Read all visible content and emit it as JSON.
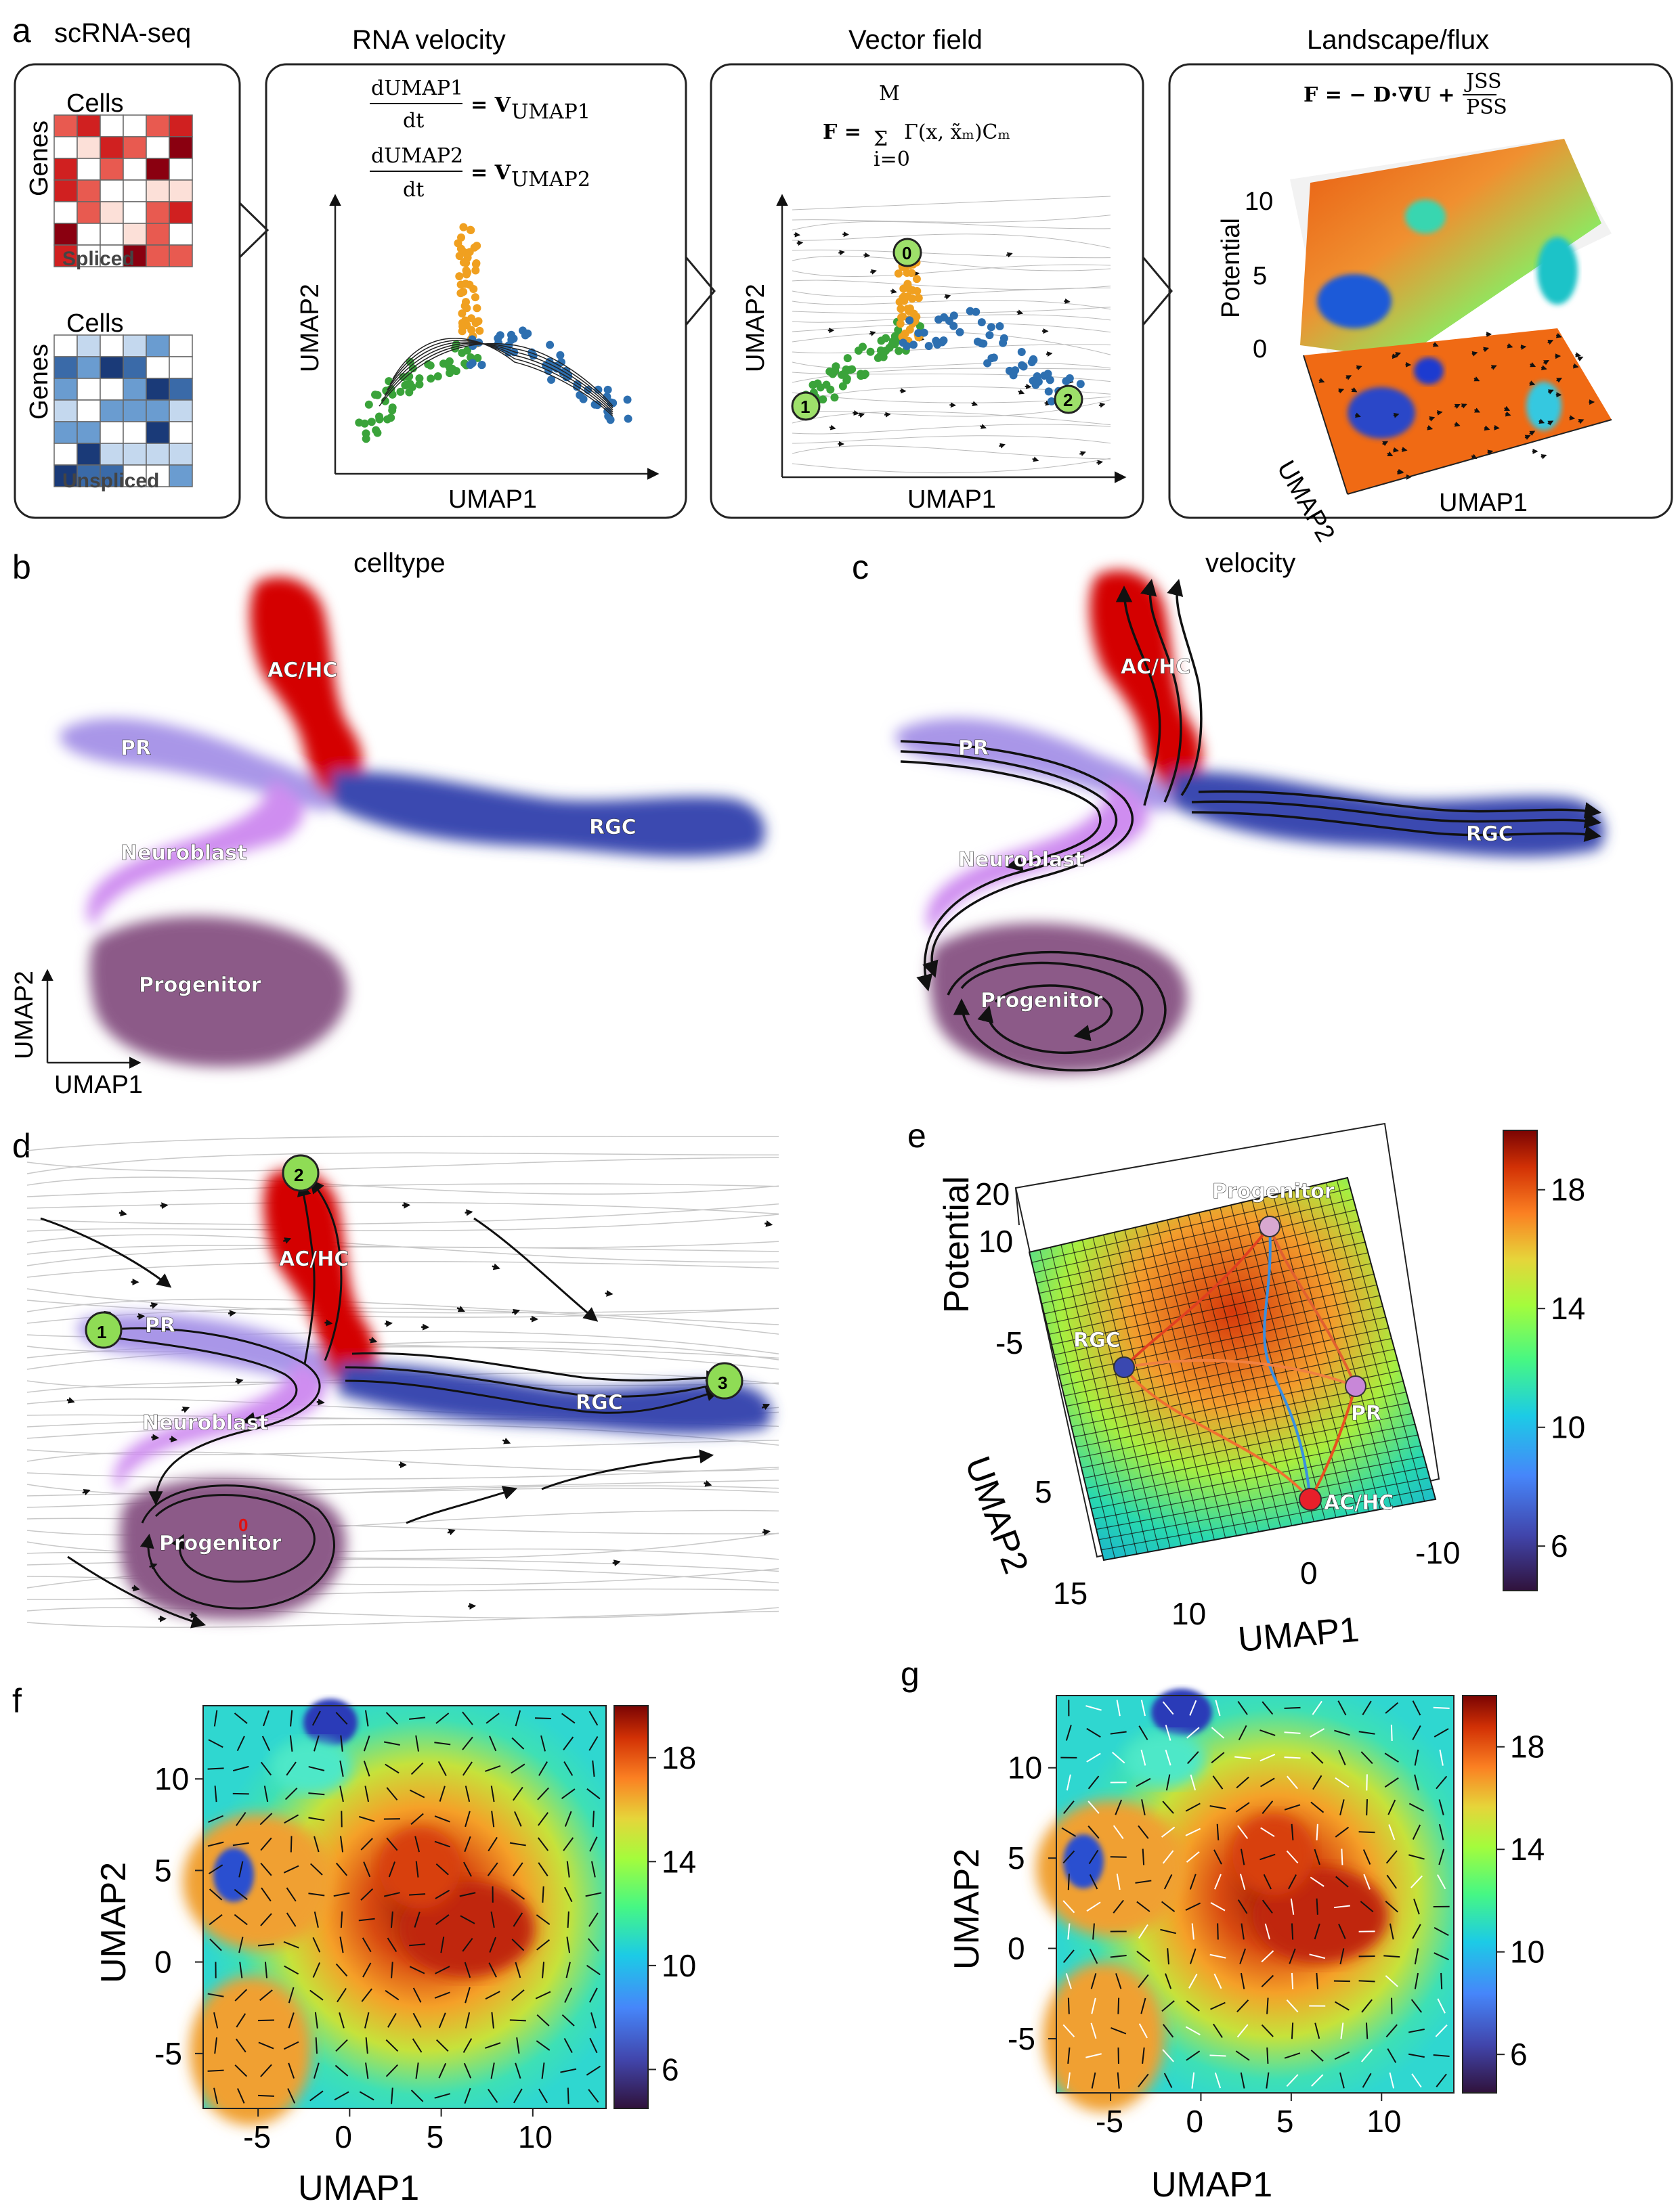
{
  "panels": {
    "a": {
      "label": "a",
      "titles": {
        "scrna": "scRNA-seq",
        "velocity": "RNA velocity",
        "vector": "Vector field",
        "landscape": "Landscape/flux"
      },
      "matrix_top": {
        "cols_label": "Cells",
        "rows_label": "Genes",
        "tag": "Spliced"
      },
      "matrix_bottom": {
        "cols_label": "Cells",
        "rows_label": "Genes",
        "tag": "Unspliced"
      },
      "velocity_eq1_lhs": "dUMAP1",
      "velocity_eq1_den": "dt",
      "velocity_eq1_rhs": "= V",
      "velocity_eq1_sub": "UMAP1",
      "velocity_eq2_lhs": "dUMAP2",
      "velocity_eq2_den": "dt",
      "velocity_eq2_rhs": "= V",
      "velocity_eq2_sub": "UMAP2",
      "vector_eq": "F = Σ Γ(x, x̃m)Cm",
      "vector_eq_top": "M",
      "vector_eq_bottom": "i=0",
      "landscape_eq": "F = − D·∇U + ",
      "landscape_frac_num": "JSS",
      "landscape_frac_den": "PSS",
      "xlabel": "UMAP1",
      "ylabel": "UMAP2",
      "fixed_points": [
        "0",
        "1",
        "2"
      ],
      "potential_label": "Potential",
      "potential_ticks": [
        "10",
        "5",
        "0"
      ]
    },
    "b": {
      "label": "b",
      "title": "celltype",
      "xlabel": "UMAP1",
      "ylabel": "UMAP2",
      "cells": [
        "AC/HC",
        "PR",
        "Neuroblast",
        "RGC",
        "Progenitor"
      ]
    },
    "c": {
      "label": "c",
      "title": "velocity",
      "cells": [
        "AC/HC",
        "PR",
        "Neuroblast",
        "RGC",
        "Progenitor"
      ]
    },
    "d": {
      "label": "d",
      "cells": [
        "AC/HC",
        "PR",
        "Neuroblast",
        "RGC",
        "Progenitor"
      ],
      "fixed_points": [
        "2",
        "1",
        "3",
        "0"
      ]
    },
    "e": {
      "label": "e",
      "zlabel": "Potential",
      "xlabel": "UMAP1",
      "ylabel": "UMAP2",
      "zticks": [
        "20",
        "10",
        "-5"
      ],
      "xticks": [
        "10",
        "0",
        "-10"
      ],
      "yticks": [
        "15",
        "5"
      ],
      "nodes": [
        "Progenitor",
        "RGC",
        "PR",
        "AC/HC"
      ],
      "colorbar_ticks": [
        "18",
        "14",
        "10",
        "6"
      ]
    },
    "f": {
      "label": "f",
      "xlabel": "UMAP1",
      "ylabel": "UMAP2",
      "xticks": [
        "-5",
        "0",
        "5",
        "10"
      ],
      "yticks": [
        "10",
        "5",
        "0",
        "-5"
      ],
      "colorbar_ticks": [
        "18",
        "14",
        "10",
        "6"
      ]
    },
    "g": {
      "label": "g",
      "xlabel": "UMAP1",
      "ylabel": "UMAP2",
      "xticks": [
        "-5",
        "0",
        "5",
        "10"
      ],
      "yticks": [
        "10",
        "5",
        "0",
        "-5"
      ],
      "colorbar_ticks": [
        "18",
        "14",
        "10",
        "6"
      ]
    }
  },
  "colors": {
    "ac_hc": "#d40000",
    "pr": "#a996e8",
    "neuroblast": "#cf8df0",
    "rgc": "#3a48b0",
    "progenitor": "#8c5a88",
    "orange": "#f0a020",
    "green": "#3aa33a",
    "blue": "#2d6fb0"
  }
}
